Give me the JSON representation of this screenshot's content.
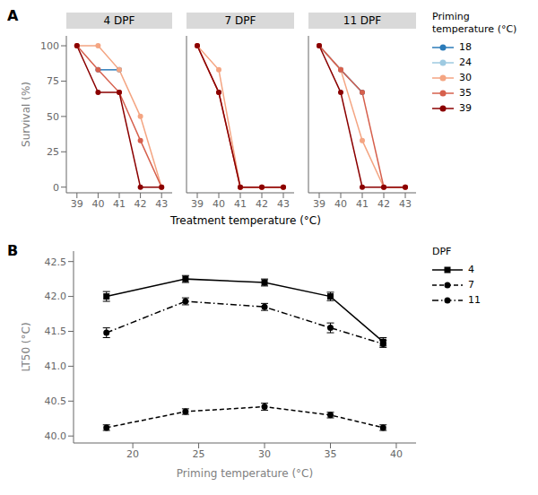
{
  "chart_data": [
    {
      "type": "line",
      "annotations": [
        "A"
      ],
      "xlabel": "Treatment temperature (°C)",
      "ylabel": "Survival (%)",
      "x": [
        39,
        40,
        41,
        42,
        43
      ],
      "xlim": [
        38.5,
        43.5
      ],
      "ylim": [
        -4,
        107
      ],
      "xticks": [
        39,
        40,
        41,
        42,
        43
      ],
      "yticks": [
        0,
        25,
        50,
        75,
        100
      ],
      "marker": "circle",
      "legend": "right",
      "legend_title": "Priming\ntemperature (°C)",
      "legend_entries": [
        {
          "name": "18",
          "color": "#2b7bb9"
        },
        {
          "name": "24",
          "color": "#9ecae1"
        },
        {
          "name": "30",
          "color": "#f4a582"
        },
        {
          "name": "35",
          "color": "#d6604d"
        },
        {
          "name": "39",
          "color": "#8b0000"
        }
      ],
      "facets": [
        {
          "title": "4 DPF",
          "series": [
            {
              "name": "18",
              "color": "#2b7bb9",
              "values": [
                null,
                83,
                83,
                null,
                null
              ]
            },
            {
              "name": "30",
              "color": "#f4a582",
              "values": [
                100,
                100,
                83,
                50,
                0
              ]
            },
            {
              "name": "35",
              "color": "#d6604d",
              "values": [
                100,
                83,
                67,
                33,
                0
              ]
            },
            {
              "name": "39",
              "color": "#8b0000",
              "values": [
                100,
                67,
                67,
                0,
                0
              ]
            }
          ]
        },
        {
          "title": "7 DPF",
          "series": [
            {
              "name": "30",
              "color": "#f4a582",
              "values": [
                100,
                83,
                0,
                0,
                0
              ]
            },
            {
              "name": "35",
              "color": "#d6604d",
              "values": [
                100,
                67,
                0,
                0,
                0
              ]
            },
            {
              "name": "39",
              "color": "#8b0000",
              "values": [
                100,
                67,
                0,
                0,
                0
              ]
            }
          ]
        },
        {
          "title": "11 DPF",
          "series": [
            {
              "name": "18",
              "color": "#2b7bb9",
              "values": [
                100,
                83,
                67,
                null,
                null
              ]
            },
            {
              "name": "30",
              "color": "#f4a582",
              "values": [
                100,
                83,
                33,
                0,
                0
              ]
            },
            {
              "name": "35",
              "color": "#d6604d",
              "values": [
                100,
                83,
                67,
                0,
                0
              ]
            },
            {
              "name": "39",
              "color": "#8b0000",
              "values": [
                100,
                67,
                0,
                0,
                0
              ]
            }
          ]
        }
      ]
    },
    {
      "type": "line",
      "annotations": [
        "B"
      ],
      "xlabel": "Priming temperature (°C)",
      "ylabel": "LT50 (°C)",
      "x": [
        18,
        24,
        30,
        35,
        39
      ],
      "xlim": [
        15.5,
        41.5
      ],
      "ylim": [
        39.9,
        42.65
      ],
      "xticks": [
        20,
        25,
        30,
        35,
        40
      ],
      "yticks": [
        {
          "value": 40.0,
          "label": "40.0"
        },
        40.5,
        {
          "value": 41.0,
          "label": "41.0"
        },
        41.5,
        {
          "value": 42.0,
          "label": "42.0"
        },
        42.5
      ],
      "legend": "right",
      "legend_title": "DPF",
      "series": [
        {
          "name": "4",
          "color": "black",
          "marker": "square",
          "line_style": "solid",
          "values": [
            42.0,
            42.25,
            42.2,
            42.0,
            41.35
          ],
          "errors": [
            0.07,
            0.05,
            0.05,
            0.06,
            0.06
          ]
        },
        {
          "name": "7",
          "color": "black",
          "marker": "circle",
          "line_style": "dashed",
          "values": [
            40.12,
            40.35,
            40.42,
            40.3,
            40.12
          ],
          "errors": [
            0.04,
            0.04,
            0.05,
            0.04,
            0.04
          ]
        },
        {
          "name": "11",
          "color": "black",
          "marker": "circle",
          "line_style": "dashdot",
          "values": [
            41.48,
            41.93,
            41.85,
            41.55,
            41.32
          ],
          "errors": [
            0.07,
            0.05,
            0.05,
            0.07,
            0.05
          ]
        }
      ]
    }
  ]
}
